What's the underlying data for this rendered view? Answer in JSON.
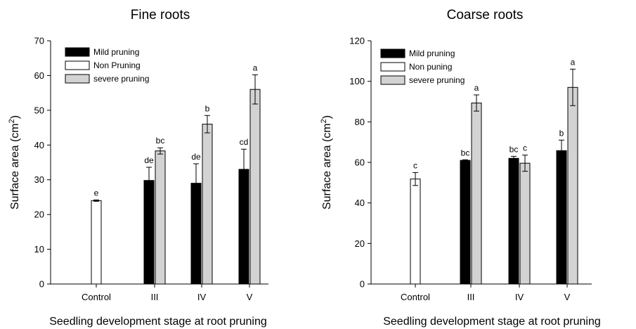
{
  "chart_data": [
    {
      "type": "bar",
      "title": "Fine roots",
      "xlabel": "Seedling development stage at root pruning",
      "ylabel": "Surface area (cm",
      "ylabel_sup": "2",
      "ylabel_close": ")",
      "ylim": [
        0,
        70
      ],
      "yticks": [
        "0",
        "10",
        "20",
        "30",
        "40",
        "50",
        "60",
        "70"
      ],
      "categories": [
        "Control",
        "III",
        "IV",
        "V"
      ],
      "legend_position": "top-left",
      "series": [
        {
          "name": "Mild pruning",
          "color": "#000000",
          "values": [
            null,
            29.8,
            29.0,
            33.0
          ],
          "errors": [
            null,
            3.8,
            5.6,
            5.8
          ],
          "labels": [
            "",
            "de",
            "de",
            "cd"
          ]
        },
        {
          "name": "Non Pruning",
          "color": "#ffffff",
          "values": [
            24.0,
            null,
            null,
            null
          ],
          "errors": [
            0.2,
            null,
            null,
            null
          ],
          "labels": [
            "e",
            "",
            "",
            ""
          ]
        },
        {
          "name": "severe pruning",
          "color": "#d3d3d3",
          "values": [
            null,
            38.3,
            46.0,
            56.0
          ],
          "errors": [
            null,
            0.9,
            2.5,
            4.2
          ],
          "labels": [
            "",
            "bc",
            "b",
            "a"
          ]
        }
      ]
    },
    {
      "type": "bar",
      "title": "Coarse roots",
      "xlabel": "Seedling development stage at root pruning",
      "ylabel": "Surface area (cm",
      "ylabel_sup": "2",
      "ylabel_close": ")",
      "ylim": [
        0,
        120
      ],
      "yticks": [
        "0",
        "20",
        "40",
        "60",
        "80",
        "100",
        "120"
      ],
      "categories": [
        "Control",
        "III",
        "IV",
        "V"
      ],
      "legend_position": "top-left",
      "series": [
        {
          "name": "Mild pruning",
          "color": "#000000",
          "values": [
            null,
            61.0,
            62.0,
            65.8
          ],
          "errors": [
            null,
            0.3,
            1.0,
            5.2
          ],
          "labels": [
            "",
            "bc",
            "bc",
            "b"
          ]
        },
        {
          "name": "Non puning",
          "color": "#ffffff",
          "values": [
            51.8,
            null,
            null,
            null
          ],
          "errors": [
            3.2,
            null,
            null,
            null
          ],
          "labels": [
            "c",
            "",
            "",
            ""
          ]
        },
        {
          "name": "severe pruning",
          "color": "#d3d3d3",
          "values": [
            null,
            89.3,
            59.6,
            97.0
          ],
          "errors": [
            null,
            4.0,
            4.0,
            9.0
          ],
          "labels": [
            "",
            "a",
            "c",
            "a"
          ]
        }
      ]
    }
  ]
}
